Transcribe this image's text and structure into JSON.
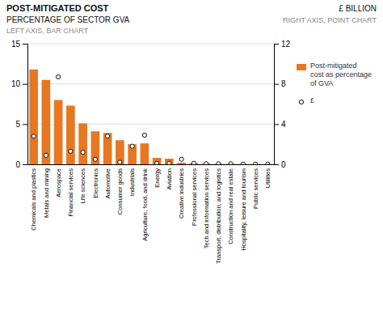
{
  "chart_data": {
    "type": "bar",
    "title": "POST-MITIGATED COST",
    "ylabel": "PERCENTAGE OF SECTOR GVA",
    "y2label": "£ BILLION",
    "annotations": [
      "LEFT AXIS, BAR CHART",
      "RIGHT AXIS, POINT CHART"
    ],
    "categories": [
      "Chemicals and plastics",
      "Metals and mining",
      "Aerospace",
      "Financial services",
      "Life sciences",
      "Electronics",
      "Automotive",
      "Consumer goods",
      "Industrials",
      "Agriculture, food, and drink",
      "Energy",
      "Aviation",
      "Creative industries",
      "Professional services",
      "Tech and information services",
      "Transport, distribution, and logistics",
      "Construction and real estate",
      "Hospitality, leisure and tourism",
      "Public services",
      "Utilities"
    ],
    "series": [
      {
        "name": "Post-mitigated\ncost as percentage\nof GVA",
        "type": "bar",
        "color": "#E87722",
        "values": [
          11.8,
          10.5,
          8.0,
          7.3,
          5.1,
          4.1,
          3.9,
          3.0,
          2.5,
          2.6,
          0.8,
          0.7,
          0.2,
          0.15,
          0.1,
          0.05,
          0.05,
          0.02,
          0.02,
          0.02
        ]
      },
      {
        "name": "£",
        "type": "scatter",
        "axis": "y2",
        "color": "#111111",
        "marker": "open-circle",
        "values": [
          2.8,
          0.9,
          8.7,
          1.3,
          1.2,
          0.5,
          2.8,
          0.2,
          1.8,
          2.9,
          0.1,
          0.1,
          0.5,
          0.1,
          0.05,
          0.05,
          0.05,
          0.02,
          0.02,
          0.02
        ]
      }
    ],
    "ylim": [
      0,
      15
    ],
    "yticks": [
      0,
      5,
      10,
      15
    ],
    "y2lim": [
      0,
      12
    ],
    "y2ticks": [
      0,
      4,
      8,
      12
    ],
    "grid": true,
    "legend": "right"
  }
}
